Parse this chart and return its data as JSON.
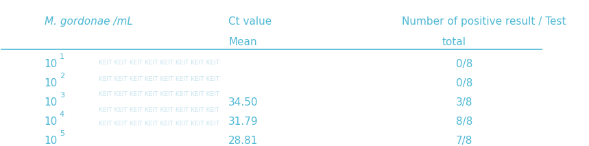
{
  "header_row1": [
    "M. gordonae /mL",
    "Ct value",
    "Number of positive result / Test"
  ],
  "header_row2": [
    "",
    "Mean",
    "total"
  ],
  "rows": [
    {
      "conc": "10",
      "exp": "1",
      "ct": "",
      "result": "0/8"
    },
    {
      "conc": "10",
      "exp": "2",
      "ct": "",
      "result": "0/8"
    },
    {
      "conc": "10",
      "exp": "3",
      "ct": "34.50",
      "result": "3/8"
    },
    {
      "conc": "10",
      "exp": "4",
      "ct": "31.79",
      "result": "8/8"
    },
    {
      "conc": "10",
      "exp": "5",
      "ct": "28.81",
      "result": "7/8"
    }
  ],
  "text_color": "#4db8d4",
  "line_color": "#4db8d4",
  "bg_color": "#ffffff",
  "font_size_header": 11,
  "font_size_body": 11,
  "watermark_color": "#b0d8e8"
}
